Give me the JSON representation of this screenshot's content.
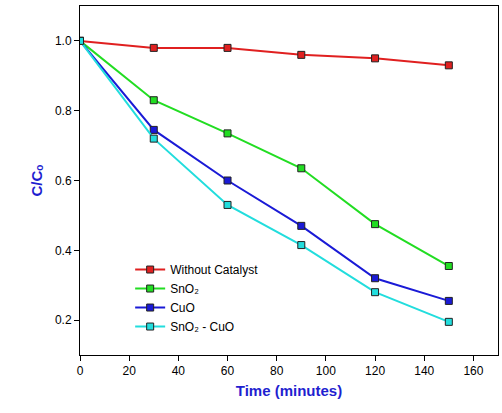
{
  "chart_data": {
    "type": "line",
    "x_label": "Time (minutes)",
    "y_label": "C/Cₒ",
    "x": [
      0,
      30,
      60,
      90,
      120,
      150
    ],
    "series": [
      {
        "name": "Without Catalyst",
        "color": "#e02020",
        "marker": "square",
        "values": [
          1.0,
          0.98,
          0.98,
          0.96,
          0.95,
          0.93
        ]
      },
      {
        "name": "SnO₂",
        "color": "#22dd22",
        "marker": "square",
        "values": [
          1.0,
          0.83,
          0.735,
          0.635,
          0.475,
          0.355
        ]
      },
      {
        "name": "CuO",
        "color": "#1a1ad6",
        "marker": "square",
        "values": [
          1.0,
          0.745,
          0.6,
          0.47,
          0.32,
          0.255
        ]
      },
      {
        "name": "SnO₂ - CuO",
        "color": "#22dddd",
        "marker": "square",
        "values": [
          1.0,
          0.72,
          0.53,
          0.415,
          0.28,
          0.195
        ]
      }
    ],
    "xlim": [
      0,
      170
    ],
    "xticks": [
      0,
      20,
      40,
      60,
      80,
      100,
      120,
      140,
      160
    ],
    "ylim": [
      0.1,
      1.1
    ],
    "yticks": [
      0.2,
      0.4,
      0.6,
      0.8,
      {
        "value": 1,
        "label": "1.0"
      }
    ],
    "grid": false,
    "legend": "lower left"
  }
}
